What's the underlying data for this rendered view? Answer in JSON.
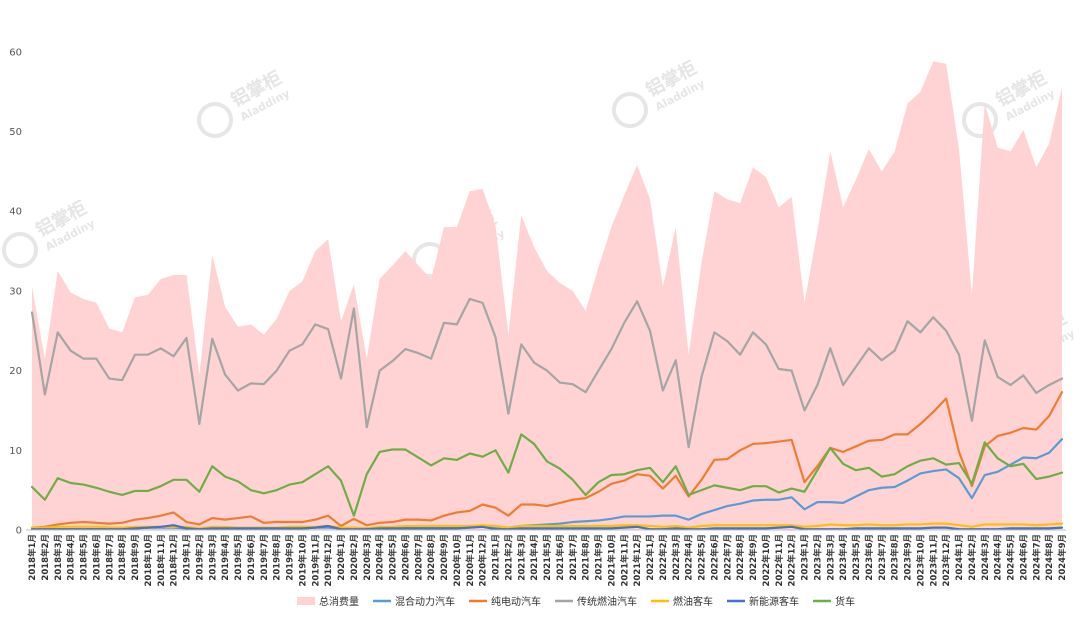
{
  "chart_data": {
    "type": "area+line",
    "title": "",
    "xlabel": "",
    "ylabel": "",
    "ylim": [
      0,
      65
    ],
    "yticks": [
      0,
      10,
      20,
      30,
      40,
      50,
      60
    ],
    "grid": false,
    "legend_position": "bottom",
    "watermark": {
      "brand_cn": "铝掌柜",
      "brand_en": "Aladdiny"
    },
    "categories": [
      "2018年1月",
      "2018年2月",
      "2018年3月",
      "2018年4月",
      "2018年5月",
      "2018年6月",
      "2018年7月",
      "2018年8月",
      "2018年9月",
      "2018年10月",
      "2018年11月",
      "2018年12月",
      "2019年1月",
      "2019年2月",
      "2019年3月",
      "2019年4月",
      "2019年5月",
      "2019年6月",
      "2019年7月",
      "2019年8月",
      "2019年9月",
      "2019年10月",
      "2019年11月",
      "2019年12月",
      "2020年1月",
      "2020年2月",
      "2020年3月",
      "2020年4月",
      "2020年5月",
      "2020年6月",
      "2020年7月",
      "2020年8月",
      "2020年9月",
      "2020年10月",
      "2020年11月",
      "2020年12月",
      "2021年1月",
      "2021年2月",
      "2021年3月",
      "2021年4月",
      "2021年5月",
      "2021年6月",
      "2021年7月",
      "2021年8月",
      "2021年9月",
      "2021年10月",
      "2021年11月",
      "2021年12月",
      "2022年1月",
      "2022年2月",
      "2022年3月",
      "2022年4月",
      "2022年5月",
      "2022年6月",
      "2022年7月",
      "2022年8月",
      "2022年9月",
      "2022年10月",
      "2022年11月",
      "2022年12月",
      "2023年1月",
      "2023年2月",
      "2023年3月",
      "2023年4月",
      "2023年5月",
      "2023年6月",
      "2023年7月",
      "2023年8月",
      "2023年9月",
      "2023年10月",
      "2023年11月",
      "2023年12月",
      "2024年1月",
      "2024年2月",
      "2024年3月",
      "2024年4月",
      "2024年5月",
      "2024年6月",
      "2024年7月",
      "2024年8月",
      "2024年9月"
    ],
    "xtick_labels": [
      "2018年1月",
      "2018年2月",
      "2018年3月",
      "2018年4月",
      "2018年5月",
      "2018年6月",
      "2018年7月",
      "2018年8月",
      "2018年9月",
      "2018年10月",
      "2018年11月",
      "2018年12月",
      "2019年1月",
      "2019年2月",
      "2019年3月",
      "2019年4月",
      "2019年5月",
      "2019年6月",
      "2019年7月",
      "2019年8月",
      "2019年9月",
      "2019年10月",
      "2019年11月",
      "2019年12月",
      "2020年1月",
      "2020年2月",
      "2020年3月",
      "2020年4月",
      "2020年5月",
      "2020年6月",
      "2020年7月",
      "2020年8月",
      "2020年9月",
      "2020年10月",
      "2020年11月",
      "2020年12月",
      "2021年1月",
      "2021年2月",
      "2021年3月",
      "2021年4月",
      "2021年5月",
      "2021年6月",
      "2021年7月",
      "2021年8月",
      "2021年9月",
      "2021年10月",
      "2021年11月",
      "2021年12月",
      "2022年1月",
      "2022年2月",
      "2022年3月",
      "2022年4月",
      "2022年5月",
      "2022年6月",
      "2022年7月",
      "2022年8月",
      "2022年9月",
      "2022年10月",
      "2022年11月",
      "2022年12月",
      "2023年1月",
      "2023年2月",
      "2023年3月",
      "2023年4月",
      "2023年5月",
      "2023年6月",
      "2023年7月",
      "2023年8月",
      "2023年9月",
      "2023年10月",
      "2023年11月",
      "2023年12月",
      "2024年1月",
      "2024年2月",
      "2024年3月",
      "2024年4月",
      "2024年5月",
      "2024年6月",
      "2024年7月",
      "2024年8月",
      "2024年9月"
    ],
    "series": [
      {
        "name": "总消费量",
        "type": "area",
        "color": "#ffd3d3",
        "values": [
          30.5,
          21.5,
          32.5,
          29.8,
          29,
          28.5,
          25.3,
          24.8,
          29.2,
          29.5,
          31.5,
          32,
          32,
          19.5,
          34.5,
          28,
          25.5,
          25.8,
          24.5,
          26.5,
          30,
          31.2,
          35,
          36.5,
          26.2,
          30.8,
          21.5,
          31.5,
          33.2,
          35,
          33.2,
          31.5,
          38,
          38,
          42.5,
          42.8,
          38.2,
          24.5,
          39.5,
          35.5,
          32.5,
          31,
          30,
          27.5,
          33,
          38,
          42,
          45.8,
          41.5,
          30.5,
          38,
          22,
          33.5,
          42.5,
          41.5,
          41,
          45.5,
          44.3,
          40.5,
          41.8,
          28.5,
          37.5,
          47.5,
          40.5,
          44,
          47.8,
          45,
          47.5,
          53.5,
          55,
          58.8,
          58.5,
          47.8,
          29.5,
          53.5,
          48,
          47.5,
          50.2,
          45.5,
          48.5,
          55.5
        ]
      },
      {
        "name": "混合动力汽车",
        "type": "line",
        "color": "#5b9bd5",
        "values": [
          0.1,
          0.1,
          0.1,
          0.1,
          0.1,
          0.1,
          0.1,
          0.2,
          0.2,
          0.3,
          0.3,
          0.3,
          0.2,
          0.1,
          0.2,
          0.2,
          0.2,
          0.2,
          0.2,
          0.2,
          0.2,
          0.2,
          0.3,
          0.3,
          0.2,
          0.2,
          0.2,
          0.3,
          0.3,
          0.3,
          0.3,
          0.3,
          0.3,
          0.3,
          0.4,
          0.4,
          0.3,
          0.3,
          0.5,
          0.6,
          0.7,
          0.8,
          1.0,
          1.1,
          1.2,
          1.4,
          1.7,
          1.7,
          1.7,
          1.8,
          1.8,
          1.3,
          2.0,
          2.5,
          3.0,
          3.3,
          3.7,
          3.8,
          3.8,
          4.1,
          2.6,
          3.5,
          3.5,
          3.4,
          4.2,
          5.0,
          5.3,
          5.4,
          6.2,
          7.1,
          7.4,
          7.6,
          6.5,
          4.0,
          6.9,
          7.3,
          8.2,
          9.1,
          9.0,
          9.7,
          11.4
        ]
      },
      {
        "name": "纯电动汽车",
        "type": "line",
        "color": "#ed7d31",
        "values": [
          0.3,
          0.4,
          0.7,
          0.9,
          1.0,
          0.9,
          0.8,
          0.9,
          1.3,
          1.5,
          1.8,
          2.2,
          1.0,
          0.7,
          1.5,
          1.3,
          1.5,
          1.7,
          0.9,
          1.0,
          1.0,
          1.0,
          1.3,
          1.8,
          0.5,
          1.4,
          0.6,
          0.9,
          1.0,
          1.3,
          1.3,
          1.2,
          1.8,
          2.2,
          2.4,
          3.2,
          2.8,
          1.8,
          3.2,
          3.2,
          3.0,
          3.4,
          3.8,
          4.0,
          4.8,
          5.8,
          6.2,
          7.0,
          6.8,
          5.2,
          6.8,
          4.2,
          6.3,
          8.8,
          8.9,
          10.0,
          10.8,
          10.9,
          11.1,
          11.3,
          6.0,
          8.0,
          10.3,
          9.8,
          10.5,
          11.2,
          11.3,
          12.0,
          12.0,
          13.3,
          14.8,
          16.5,
          9.8,
          5.5,
          10.5,
          11.8,
          12.2,
          12.8,
          12.6,
          14.3,
          17.3
        ]
      },
      {
        "name": "传统燃油汽车",
        "type": "line",
        "color": "#a5a5a5",
        "values": [
          27.3,
          17.0,
          24.8,
          22.5,
          21.5,
          21.5,
          19.0,
          18.8,
          22.0,
          22.0,
          22.8,
          21.8,
          24.1,
          13.3,
          24.0,
          19.5,
          17.5,
          18.4,
          18.3,
          20.0,
          22.5,
          23.3,
          25.8,
          25.2,
          19.0,
          27.8,
          12.9,
          20.0,
          21.2,
          22.7,
          22.2,
          21.5,
          26.0,
          25.8,
          29.0,
          28.5,
          24.2,
          14.6,
          23.3,
          21.0,
          20.0,
          18.5,
          18.3,
          17.3,
          20.0,
          22.7,
          26.0,
          28.7,
          25.0,
          17.5,
          21.3,
          10.4,
          19.2,
          24.8,
          23.7,
          22.0,
          24.8,
          23.3,
          20.2,
          20.0,
          15.0,
          18.2,
          22.8,
          18.2,
          20.5,
          22.8,
          21.3,
          22.5,
          26.2,
          24.8,
          26.7,
          25.0,
          22.0,
          13.7,
          23.8,
          19.2,
          18.2,
          19.4,
          17.2,
          18.2,
          19.0
        ]
      },
      {
        "name": "燃油客车",
        "type": "line",
        "color": "#ffc000",
        "values": [
          0.3,
          0.3,
          0.4,
          0.4,
          0.4,
          0.4,
          0.3,
          0.3,
          0.4,
          0.4,
          0.4,
          0.4,
          0.4,
          0.2,
          0.4,
          0.4,
          0.3,
          0.3,
          0.3,
          0.3,
          0.4,
          0.4,
          0.4,
          0.5,
          0.3,
          0.3,
          0.2,
          0.4,
          0.4,
          0.5,
          0.5,
          0.5,
          0.5,
          0.5,
          0.5,
          0.6,
          0.5,
          0.3,
          0.5,
          0.5,
          0.5,
          0.5,
          0.5,
          0.5,
          0.5,
          0.5,
          0.6,
          0.6,
          0.5,
          0.4,
          0.5,
          0.3,
          0.5,
          0.6,
          0.6,
          0.6,
          0.6,
          0.6,
          0.6,
          0.6,
          0.4,
          0.5,
          0.7,
          0.6,
          0.6,
          0.7,
          0.6,
          0.6,
          0.7,
          0.7,
          0.8,
          0.8,
          0.6,
          0.4,
          0.7,
          0.7,
          0.7,
          0.7,
          0.6,
          0.7,
          0.8
        ]
      },
      {
        "name": "新能源客车",
        "type": "line",
        "color": "#4472c4",
        "values": [
          0.1,
          0.1,
          0.1,
          0.1,
          0.1,
          0.1,
          0.1,
          0.1,
          0.2,
          0.3,
          0.4,
          0.6,
          0.2,
          0.1,
          0.2,
          0.2,
          0.2,
          0.2,
          0.2,
          0.2,
          0.2,
          0.2,
          0.3,
          0.5,
          0.1,
          0.1,
          0.1,
          0.2,
          0.2,
          0.2,
          0.2,
          0.2,
          0.2,
          0.2,
          0.3,
          0.4,
          0.1,
          0.1,
          0.2,
          0.2,
          0.2,
          0.2,
          0.2,
          0.2,
          0.2,
          0.2,
          0.3,
          0.4,
          0.1,
          0.1,
          0.2,
          0.1,
          0.1,
          0.2,
          0.2,
          0.2,
          0.2,
          0.2,
          0.3,
          0.4,
          0.1,
          0.1,
          0.1,
          0.1,
          0.2,
          0.2,
          0.2,
          0.2,
          0.2,
          0.2,
          0.3,
          0.3,
          0.1,
          0.1,
          0.1,
          0.1,
          0.2,
          0.2,
          0.2,
          0.2,
          0.3
        ]
      },
      {
        "name": "货车",
        "type": "line",
        "color": "#70ad47",
        "values": [
          5.4,
          3.8,
          6.5,
          5.9,
          5.7,
          5.3,
          4.8,
          4.4,
          4.9,
          4.9,
          5.5,
          6.3,
          6.3,
          4.8,
          8.0,
          6.7,
          6.1,
          5.0,
          4.6,
          5.0,
          5.7,
          6.0,
          7.0,
          8.0,
          6.2,
          1.8,
          7.0,
          9.8,
          10.1,
          10.1,
          9.1,
          8.1,
          9.0,
          8.8,
          9.6,
          9.2,
          10.0,
          7.2,
          12.0,
          10.8,
          8.6,
          7.7,
          6.3,
          4.4,
          6.0,
          6.9,
          7.0,
          7.5,
          7.8,
          6.0,
          8.0,
          4.4,
          5.0,
          5.6,
          5.3,
          5.0,
          5.5,
          5.5,
          4.7,
          5.2,
          4.8,
          7.5,
          10.3,
          8.3,
          7.5,
          7.8,
          6.7,
          7.0,
          8.0,
          8.7,
          9.0,
          8.2,
          8.4,
          5.8,
          11.0,
          9.0,
          8.0,
          8.3,
          6.4,
          6.7,
          7.2
        ]
      }
    ]
  }
}
